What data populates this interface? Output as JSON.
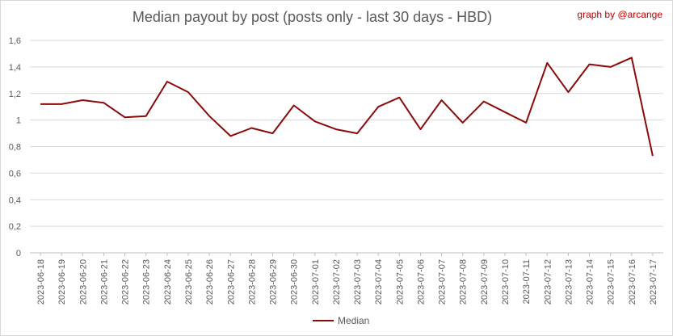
{
  "header": {
    "title": "Median payout by post (posts only - last 30 days - HBD)",
    "credit": "graph by @arcange"
  },
  "chart_data": {
    "type": "line",
    "title": "Median payout by post (posts only - last 30 days - HBD)",
    "xlabel": "",
    "ylabel": "",
    "ylim": [
      0,
      1.6
    ],
    "y_ticks": [
      "0",
      "0,2",
      "0,4",
      "0,6",
      "0,8",
      "1",
      "1,2",
      "1,4",
      "1,6"
    ],
    "grid": true,
    "legend_position": "bottom",
    "categories": [
      "2023-06-18",
      "2023-06-19",
      "2023-06-20",
      "2023-06-21",
      "2023-06-22",
      "2023-06-23",
      "2023-06-24",
      "2023-06-25",
      "2023-06-26",
      "2023-06-27",
      "2023-06-28",
      "2023-06-29",
      "2023-06-30",
      "2023-07-01",
      "2023-07-02",
      "2023-07-03",
      "2023-07-04",
      "2023-07-05",
      "2023-07-06",
      "2023-07-07",
      "2023-07-08",
      "2023-07-09",
      "2023-07-10",
      "2023-07-11",
      "2023-07-12",
      "2023-07-13",
      "2023-07-14",
      "2023-07-15",
      "2023-07-16",
      "2023-07-17"
    ],
    "series": [
      {
        "name": "Median",
        "color": "#8b0a0a",
        "values": [
          1.12,
          1.12,
          1.15,
          1.13,
          1.02,
          1.03,
          1.29,
          1.21,
          1.03,
          0.88,
          0.94,
          0.9,
          1.11,
          0.99,
          0.93,
          0.9,
          1.1,
          1.17,
          0.93,
          1.15,
          0.98,
          1.14,
          1.06,
          0.98,
          1.43,
          1.21,
          1.42,
          1.4,
          1.47,
          0.73
        ]
      }
    ]
  }
}
